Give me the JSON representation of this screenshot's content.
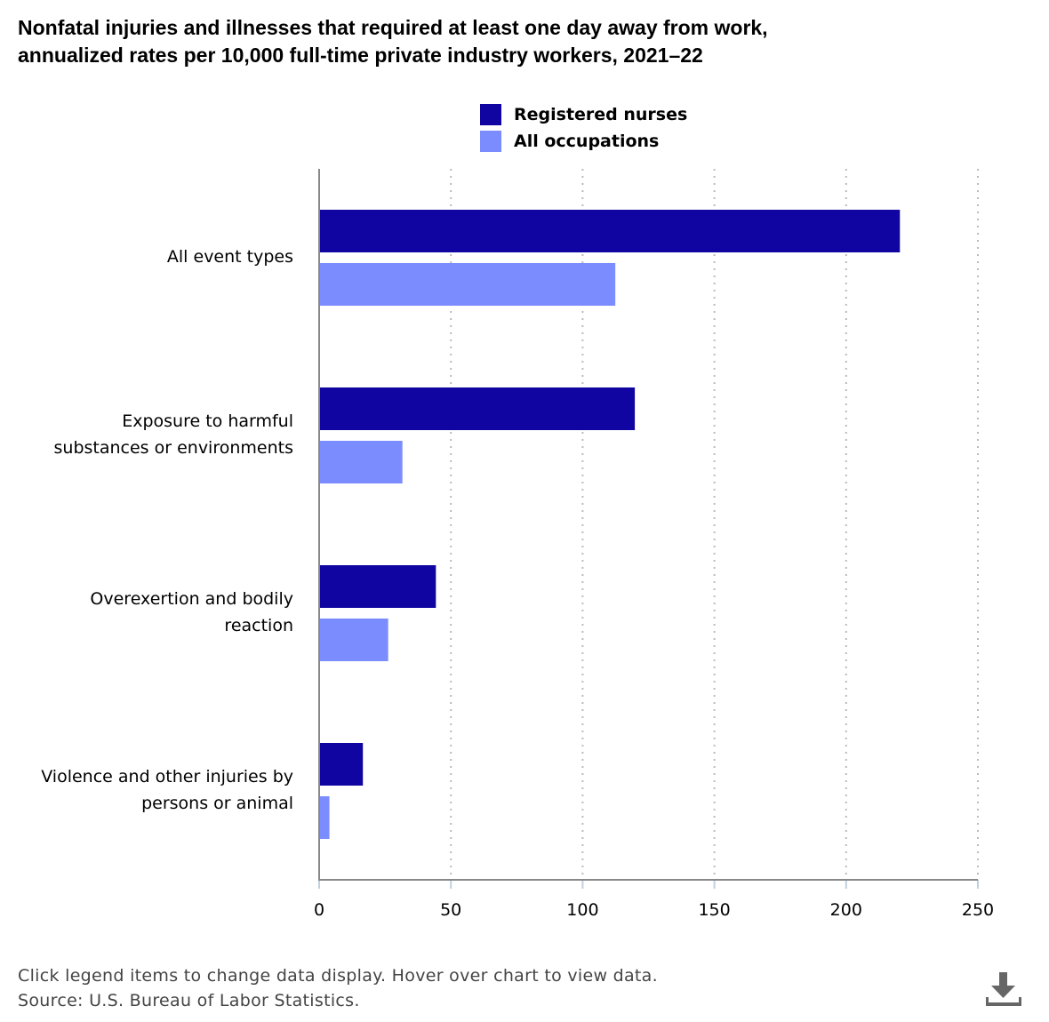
{
  "chart_data": {
    "type": "bar",
    "orientation": "horizontal",
    "title": "Nonfatal injuries and illnesses that required at least one day away from work, annualized rates per 10,000 full-time private industry workers, 2021–22",
    "title_lines": [
      "Nonfatal injuries and illnesses that required at least one day away from work,",
      "annualized rates per 10,000 full-time private industry workers, 2021–22"
    ],
    "categories": [
      [
        "All event types"
      ],
      [
        "Exposure to harmful",
        "substances or environments"
      ],
      [
        "Overexertion and bodily",
        "reaction"
      ],
      [
        "Violence and other injuries by",
        "persons or animal"
      ]
    ],
    "series": [
      {
        "name": "Registered nurses",
        "color": "#1005a0",
        "values": [
          220.4,
          119.8,
          44.3,
          16.6
        ]
      },
      {
        "name": "All occupations",
        "color": "#7b8cff",
        "values": [
          112.4,
          31.6,
          26.2,
          3.9
        ]
      }
    ],
    "xlim": [
      0,
      250
    ],
    "xticks": [
      "0",
      "50",
      "100",
      "150",
      "200",
      "250"
    ],
    "xtick_values": [
      0,
      50,
      100,
      150,
      200,
      250
    ],
    "grid": true,
    "legend_position": "top-center"
  },
  "footer": {
    "note": "Click legend items to change data display. Hover over chart to view data.",
    "source": "Source: U.S. Bureau of Labor Statistics."
  },
  "icons": {
    "download": "download-icon"
  }
}
